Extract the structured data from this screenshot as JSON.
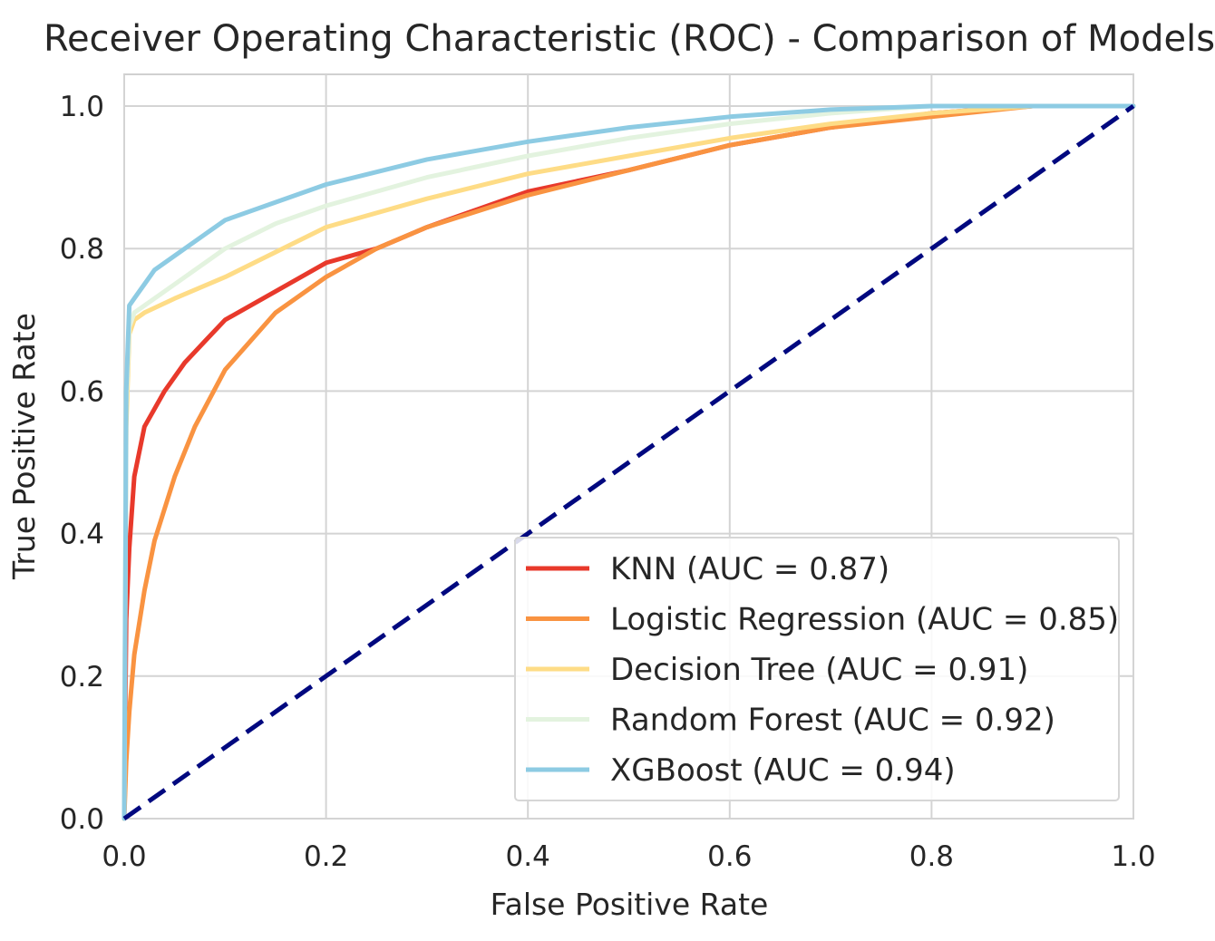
{
  "chart_data": {
    "type": "line",
    "title": "Receiver Operating Characteristic (ROC) - Comparison of Models",
    "xlabel": "False Positive Rate",
    "ylabel": "True Positive Rate",
    "xlim": [
      0.0,
      1.0
    ],
    "ylim": [
      0.0,
      1.0
    ],
    "xticks": [
      "0.0",
      "0.2",
      "0.4",
      "0.6",
      "0.8",
      "1.0"
    ],
    "yticks": [
      "0.0",
      "0.2",
      "0.4",
      "0.6",
      "0.8",
      "1.0"
    ],
    "grid": true,
    "legend_position": "lower-right",
    "series": [
      {
        "name": "KNN (AUC = 0.87)",
        "color": "#e8392b",
        "x": [
          0.0,
          0.002,
          0.005,
          0.01,
          0.02,
          0.04,
          0.06,
          0.08,
          0.1,
          0.15,
          0.2,
          0.25,
          0.3,
          0.4,
          0.5,
          0.6,
          0.7,
          0.8,
          0.9,
          1.0
        ],
        "y": [
          0.0,
          0.28,
          0.38,
          0.48,
          0.55,
          0.6,
          0.64,
          0.67,
          0.7,
          0.74,
          0.78,
          0.8,
          0.83,
          0.88,
          0.91,
          0.945,
          0.97,
          0.99,
          1.0,
          1.0
        ]
      },
      {
        "name": "Logistic Regression (AUC = 0.85)",
        "color": "#f99341",
        "x": [
          0.0,
          0.002,
          0.005,
          0.01,
          0.02,
          0.03,
          0.05,
          0.07,
          0.1,
          0.15,
          0.2,
          0.25,
          0.3,
          0.4,
          0.5,
          0.6,
          0.7,
          0.8,
          0.9,
          1.0
        ],
        "y": [
          0.0,
          0.08,
          0.15,
          0.23,
          0.32,
          0.39,
          0.48,
          0.55,
          0.63,
          0.71,
          0.76,
          0.8,
          0.83,
          0.875,
          0.91,
          0.945,
          0.97,
          0.985,
          1.0,
          1.0
        ]
      },
      {
        "name": "Decision Tree (AUC = 0.91)",
        "color": "#fedc86",
        "x": [
          0.0,
          0.002,
          0.005,
          0.01,
          0.02,
          0.05,
          0.1,
          0.15,
          0.2,
          0.3,
          0.4,
          0.5,
          0.6,
          0.7,
          0.8,
          0.9,
          1.0
        ],
        "y": [
          0.0,
          0.55,
          0.68,
          0.7,
          0.71,
          0.73,
          0.76,
          0.795,
          0.83,
          0.87,
          0.905,
          0.93,
          0.955,
          0.975,
          0.99,
          1.0,
          1.0
        ]
      },
      {
        "name": "Random Forest (AUC = 0.92)",
        "color": "#e3f3df",
        "x": [
          0.0,
          0.002,
          0.005,
          0.01,
          0.02,
          0.05,
          0.1,
          0.15,
          0.2,
          0.3,
          0.4,
          0.5,
          0.6,
          0.7,
          0.8,
          0.9,
          1.0
        ],
        "y": [
          0.0,
          0.58,
          0.69,
          0.71,
          0.72,
          0.75,
          0.8,
          0.835,
          0.86,
          0.9,
          0.93,
          0.955,
          0.975,
          0.99,
          1.0,
          1.0,
          1.0
        ]
      },
      {
        "name": "XGBoost (AUC = 0.94)",
        "color": "#8dcbe3",
        "x": [
          0.0,
          0.002,
          0.005,
          0.01,
          0.02,
          0.03,
          0.05,
          0.08,
          0.1,
          0.15,
          0.2,
          0.3,
          0.4,
          0.5,
          0.6,
          0.7,
          0.8,
          0.9,
          1.0
        ],
        "y": [
          0.0,
          0.6,
          0.72,
          0.73,
          0.75,
          0.77,
          0.79,
          0.82,
          0.84,
          0.865,
          0.89,
          0.925,
          0.95,
          0.97,
          0.985,
          0.995,
          1.0,
          1.0,
          1.0
        ]
      }
    ],
    "reference_line": {
      "x": [
        0.0,
        1.0
      ],
      "y": [
        0.0,
        1.0
      ],
      "color": "#00087f",
      "style": "dashed"
    }
  }
}
